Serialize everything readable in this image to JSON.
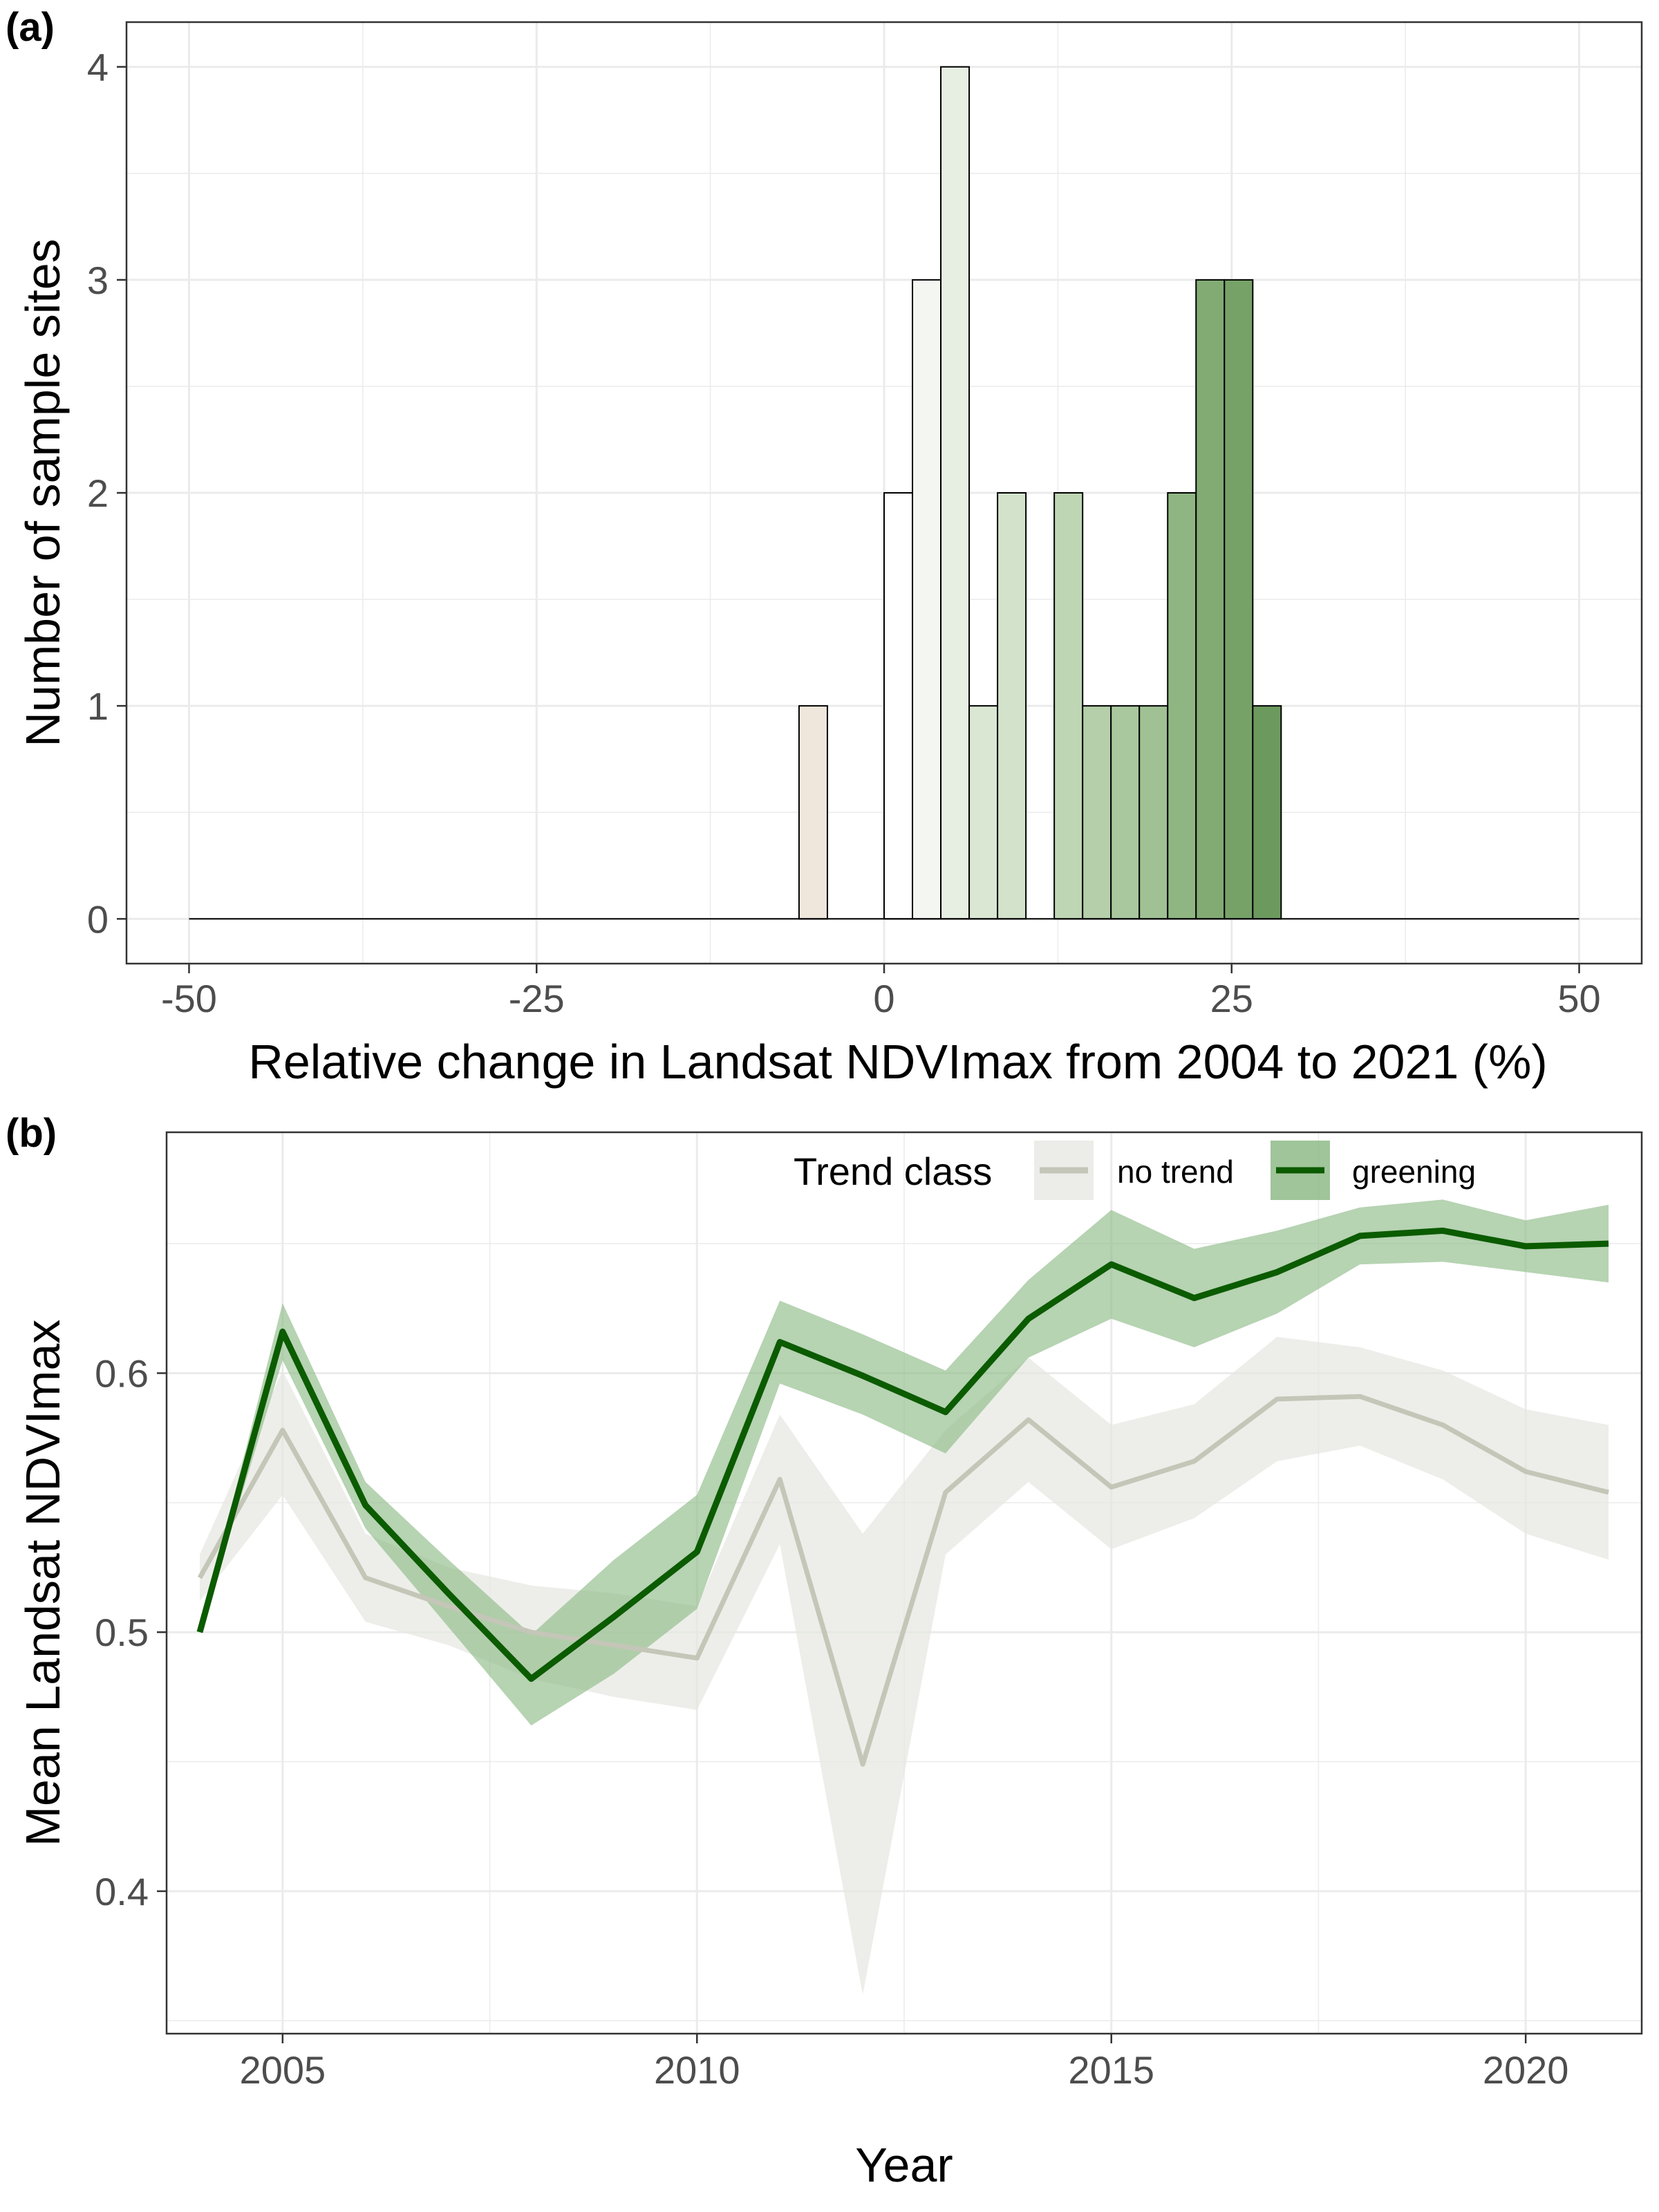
{
  "panels": {
    "a": {
      "label": "(a)"
    },
    "b": {
      "label": "(b)"
    }
  },
  "chart_data": [
    {
      "type": "bar",
      "subtype": "histogram",
      "panel": "(a)",
      "title": "",
      "xlabel": "Relative change in Landsat NDVImax from 2004 to 2021 (%)",
      "ylabel": "Number of sample sites",
      "xlim": [
        -50,
        50
      ],
      "ylim": [
        0,
        4
      ],
      "xticks": [
        -50,
        -25,
        0,
        25,
        50
      ],
      "xtick_labels": [
        "-50",
        "-25",
        "0",
        "25",
        "50"
      ],
      "yticks": [
        0,
        1,
        2,
        3,
        4
      ],
      "ytick_labels": [
        "0",
        "1",
        "2",
        "3",
        "4"
      ],
      "bin_width": 2.04,
      "bins": [
        {
          "x": -6.12,
          "count": 1,
          "color": "#efe7dc"
        },
        {
          "x": 0.0,
          "count": 2,
          "color": "#ffffff"
        },
        {
          "x": 2.04,
          "count": 3,
          "color": "#f3f6f1"
        },
        {
          "x": 4.08,
          "count": 4,
          "color": "#e7efe3"
        },
        {
          "x": 6.12,
          "count": 1,
          "color": "#d9e7d3"
        },
        {
          "x": 8.16,
          "count": 2,
          "color": "#d2e2cb"
        },
        {
          "x": 12.24,
          "count": 2,
          "color": "#bfd6b5"
        },
        {
          "x": 14.28,
          "count": 1,
          "color": "#b4cfa9"
        },
        {
          "x": 16.32,
          "count": 1,
          "color": "#a9c89d"
        },
        {
          "x": 18.36,
          "count": 1,
          "color": "#9fc193"
        },
        {
          "x": 20.4,
          "count": 2,
          "color": "#8fb682"
        },
        {
          "x": 22.44,
          "count": 3,
          "color": "#82ab74"
        },
        {
          "x": 24.48,
          "count": 3,
          "color": "#76a268"
        },
        {
          "x": 26.52,
          "count": 1,
          "color": "#6c9a5e"
        }
      ],
      "grid": true,
      "legend": "none",
      "colors": {
        "bar_stroke": "#000000",
        "grid": "#ebebeb"
      }
    },
    {
      "type": "line",
      "panel": "(b)",
      "title": "",
      "xlabel": "Year",
      "ylabel": "Mean Landsat NDVImax",
      "xlim": [
        2003.6,
        2021.4
      ],
      "ylim": [
        0.345,
        0.693
      ],
      "xticks": [
        2005,
        2010,
        2015,
        2020
      ],
      "xtick_labels": [
        "2005",
        "2010",
        "2015",
        "2020"
      ],
      "yticks": [
        0.4,
        0.5,
        0.6
      ],
      "ytick_labels": [
        "0.4",
        "0.5",
        "0.6"
      ],
      "x": [
        2004,
        2005,
        2006,
        2007,
        2008,
        2009,
        2010,
        2011,
        2012,
        2013,
        2014,
        2015,
        2016,
        2017,
        2018,
        2019,
        2020,
        2021
      ],
      "legend_title": "Trend class",
      "legend_position": "top-right (inside)",
      "series": [
        {
          "name": "no trend",
          "color": "#c4c6b8",
          "band_color": "#e6e7e0",
          "values": [
            0.521,
            0.578,
            0.521,
            0.51,
            0.5,
            0.495,
            0.49,
            0.559,
            0.449,
            0.554,
            0.582,
            0.556,
            0.566,
            0.59,
            0.591,
            0.58,
            0.562,
            0.554
          ],
          "upper": [
            0.53,
            0.601,
            0.538,
            0.525,
            0.518,
            0.515,
            0.51,
            0.584,
            0.538,
            0.578,
            0.606,
            0.58,
            0.588,
            0.614,
            0.61,
            0.601,
            0.586,
            0.58
          ],
          "lower": [
            0.512,
            0.553,
            0.504,
            0.495,
            0.482,
            0.475,
            0.47,
            0.534,
            0.36,
            0.53,
            0.558,
            0.532,
            0.544,
            0.566,
            0.572,
            0.559,
            0.538,
            0.528
          ]
        },
        {
          "name": "greening",
          "color": "#0b5b00",
          "band_color": "#8fbb88",
          "values": [
            0.5,
            0.616,
            0.549,
            0.515,
            0.482,
            0.506,
            0.531,
            0.612,
            0.599,
            0.585,
            0.621,
            0.642,
            0.629,
            0.639,
            0.653,
            0.655,
            0.649,
            0.65
          ],
          "upper": [
            0.5,
            0.627,
            0.558,
            0.528,
            0.499,
            0.528,
            0.553,
            0.628,
            0.615,
            0.601,
            0.636,
            0.663,
            0.648,
            0.655,
            0.664,
            0.667,
            0.659,
            0.665
          ],
          "lower": [
            0.5,
            0.605,
            0.54,
            0.502,
            0.464,
            0.484,
            0.509,
            0.596,
            0.584,
            0.569,
            0.606,
            0.621,
            0.61,
            0.623,
            0.642,
            0.643,
            0.639,
            0.635
          ]
        }
      ],
      "grid": true,
      "colors": {
        "grid": "#ebebeb",
        "panel_border": "#333333"
      }
    }
  ]
}
